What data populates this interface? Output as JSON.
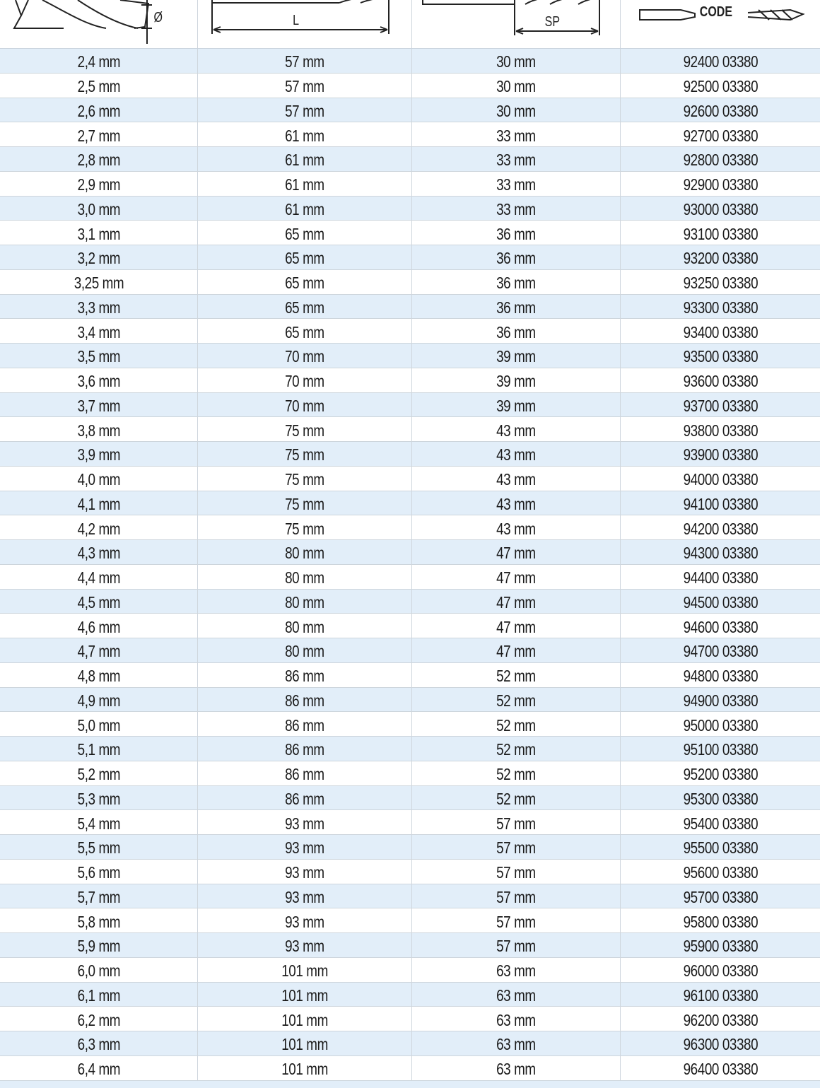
{
  "header": {
    "diameter_label": "Ø",
    "length_label": "L",
    "spiral_label": "SP",
    "code_label": "CODE",
    "icons": [
      "drill-tip-diameter-icon",
      "drill-length-icon",
      "drill-spiral-length-icon",
      "drill-code-icon"
    ]
  },
  "rows": [
    [
      "2,4 mm",
      "57 mm",
      "30 mm",
      "92400 03380"
    ],
    [
      "2,5 mm",
      "57 mm",
      "30 mm",
      "92500 03380"
    ],
    [
      "2,6 mm",
      "57 mm",
      "30 mm",
      "92600 03380"
    ],
    [
      "2,7 mm",
      "61 mm",
      "33 mm",
      "92700 03380"
    ],
    [
      "2,8 mm",
      "61 mm",
      "33 mm",
      "92800 03380"
    ],
    [
      "2,9 mm",
      "61 mm",
      "33 mm",
      "92900 03380"
    ],
    [
      "3,0 mm",
      "61 mm",
      "33 mm",
      "93000 03380"
    ],
    [
      "3,1 mm",
      "65 mm",
      "36 mm",
      "93100 03380"
    ],
    [
      "3,2 mm",
      "65 mm",
      "36 mm",
      "93200 03380"
    ],
    [
      "3,25 mm",
      "65 mm",
      "36 mm",
      "93250 03380"
    ],
    [
      "3,3 mm",
      "65 mm",
      "36 mm",
      "93300 03380"
    ],
    [
      "3,4 mm",
      "65 mm",
      "36 mm",
      "93400 03380"
    ],
    [
      "3,5 mm",
      "70 mm",
      "39 mm",
      "93500 03380"
    ],
    [
      "3,6 mm",
      "70 mm",
      "39 mm",
      "93600 03380"
    ],
    [
      "3,7 mm",
      "70 mm",
      "39 mm",
      "93700 03380"
    ],
    [
      "3,8 mm",
      "75 mm",
      "43 mm",
      "93800 03380"
    ],
    [
      "3,9 mm",
      "75 mm",
      "43 mm",
      "93900 03380"
    ],
    [
      "4,0 mm",
      "75 mm",
      "43 mm",
      "94000 03380"
    ],
    [
      "4,1 mm",
      "75 mm",
      "43 mm",
      "94100 03380"
    ],
    [
      "4,2 mm",
      "75 mm",
      "43 mm",
      "94200 03380"
    ],
    [
      "4,3 mm",
      "80 mm",
      "47 mm",
      "94300 03380"
    ],
    [
      "4,4 mm",
      "80 mm",
      "47 mm",
      "94400 03380"
    ],
    [
      "4,5 mm",
      "80 mm",
      "47 mm",
      "94500 03380"
    ],
    [
      "4,6 mm",
      "80 mm",
      "47 mm",
      "94600 03380"
    ],
    [
      "4,7 mm",
      "80 mm",
      "47 mm",
      "94700 03380"
    ],
    [
      "4,8 mm",
      "86 mm",
      "52 mm",
      "94800 03380"
    ],
    [
      "4,9 mm",
      "86 mm",
      "52 mm",
      "94900 03380"
    ],
    [
      "5,0 mm",
      "86 mm",
      "52 mm",
      "95000 03380"
    ],
    [
      "5,1 mm",
      "86 mm",
      "52 mm",
      "95100 03380"
    ],
    [
      "5,2 mm",
      "86 mm",
      "52 mm",
      "95200 03380"
    ],
    [
      "5,3 mm",
      "86 mm",
      "52 mm",
      "95300 03380"
    ],
    [
      "5,4 mm",
      "93 mm",
      "57 mm",
      "95400 03380"
    ],
    [
      "5,5 mm",
      "93 mm",
      "57 mm",
      "95500 03380"
    ],
    [
      "5,6 mm",
      "93 mm",
      "57 mm",
      "95600 03380"
    ],
    [
      "5,7 mm",
      "93 mm",
      "57 mm",
      "95700 03380"
    ],
    [
      "5,8 mm",
      "93 mm",
      "57 mm",
      "95800 03380"
    ],
    [
      "5,9 mm",
      "93 mm",
      "57 mm",
      "95900 03380"
    ],
    [
      "6,0 mm",
      "101 mm",
      "63 mm",
      "96000 03380"
    ],
    [
      "6,1 mm",
      "101 mm",
      "63 mm",
      "96100 03380"
    ],
    [
      "6,2 mm",
      "101 mm",
      "63 mm",
      "96200 03380"
    ],
    [
      "6,3 mm",
      "101 mm",
      "63 mm",
      "96300 03380"
    ],
    [
      "6,4 mm",
      "101 mm",
      "63 mm",
      "96400 03380"
    ]
  ]
}
